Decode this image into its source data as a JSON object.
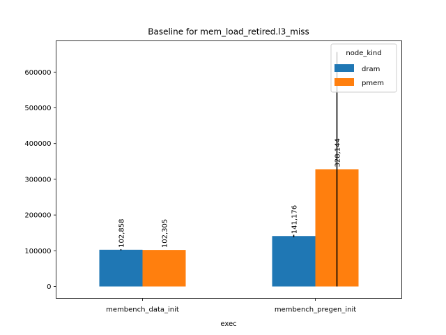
{
  "chart_data": {
    "type": "bar",
    "title": "Baseline for mem_load_retired.l3_miss",
    "xlabel": "exec",
    "ylabel": "",
    "categories": [
      "membench_data_init",
      "membench_pregen_init"
    ],
    "series": [
      {
        "name": "dram",
        "values": [
          102858,
          141176
        ],
        "data_labels": [
          "102,858",
          "141,176"
        ],
        "error": [
          1500,
          3500
        ],
        "color": "#1f77b4"
      },
      {
        "name": "pmem",
        "values": [
          102305,
          328144
        ],
        "data_labels": [
          "102,305",
          "328,144"
        ],
        "error": [
          0,
          328144
        ],
        "color": "#ff7f0e"
      }
    ],
    "ylim": [
      -32000,
      690000
    ],
    "yticks": [
      0,
      100000,
      200000,
      300000,
      400000,
      500000,
      600000
    ],
    "ytick_labels": [
      "0",
      "100000",
      "200000",
      "300000",
      "400000",
      "500000",
      "600000"
    ],
    "legend": {
      "title": "node_kind",
      "position": "top-right"
    },
    "grid": false
  }
}
